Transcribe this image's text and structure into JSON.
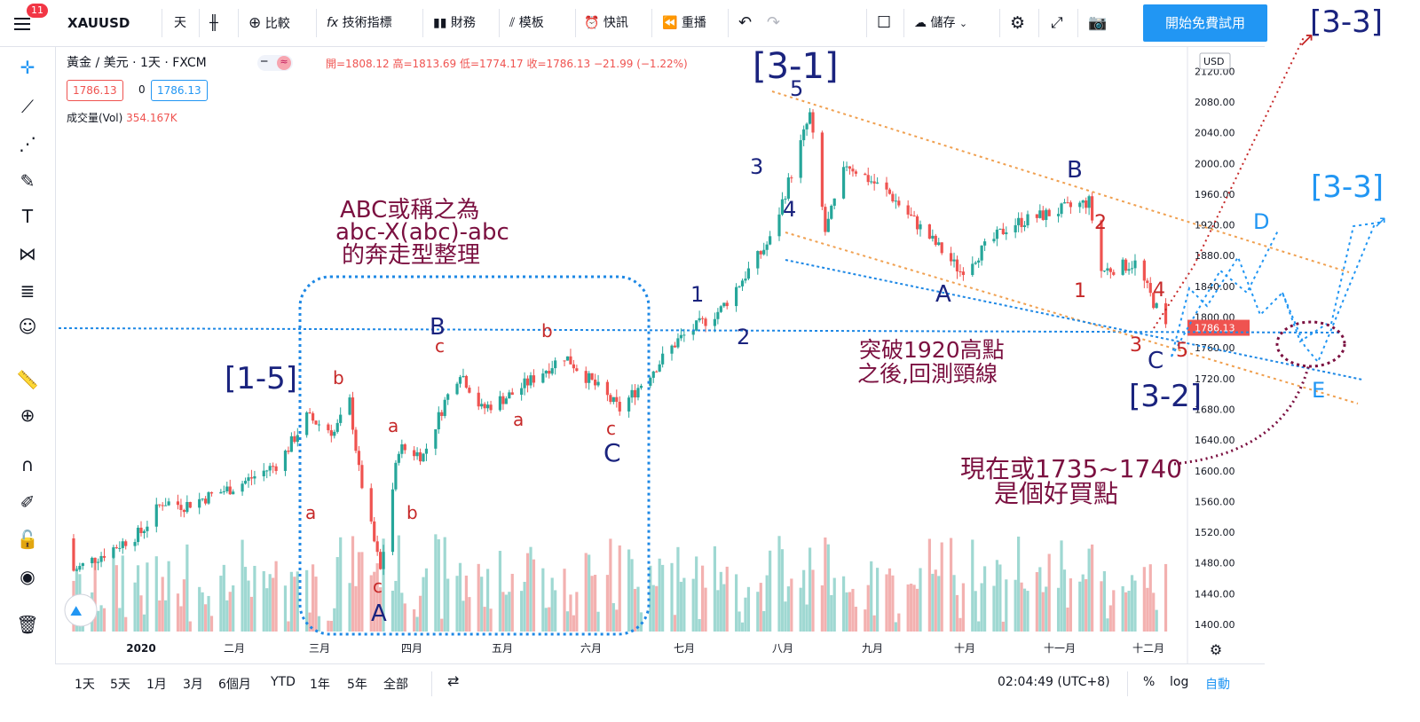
{
  "toolbar": {
    "notif_count": "11",
    "symbol": "XAUUSD",
    "interval": "天",
    "compare": "比較",
    "indicators": "技術指標",
    "financials": "財務",
    "templates": "模板",
    "alerts": "快訊",
    "replay": "重播",
    "save": "儲存",
    "cta": "開始免費試用"
  },
  "legend": {
    "title": "黃金 / 美元 · 1天 · FXCM",
    "ohlc": "開=1808.12 高=1813.69 低=1774.17 收=1786.13 −21.99 (−1.22%)",
    "bid": "1786.13",
    "spread": "0",
    "ask": "1786.13",
    "vol_label": "成交量(Vol)",
    "vol_value": "354.167K"
  },
  "bottom": {
    "ranges": [
      "1天",
      "5天",
      "1月",
      "3月",
      "6個月",
      "YTD",
      "1年",
      "5年",
      "全部"
    ],
    "time": "02:04:49 (UTC+8)",
    "pct": "%",
    "log": "log",
    "auto": "自動"
  },
  "chart_data": {
    "type": "candlestick",
    "symbol": "XAUUSD",
    "currency": "USD",
    "last_price": "1786.13",
    "y_ticks": [
      "2120.00",
      "2080.00",
      "2040.00",
      "2000.00",
      "1960.00",
      "1920.00",
      "1880.00",
      "1840.00",
      "1800.00",
      "1760.00",
      "1720.00",
      "1680.00",
      "1640.00",
      "1600.00",
      "1560.00",
      "1520.00",
      "1480.00",
      "1440.00",
      "1400.00"
    ],
    "x_ticks": [
      "2020",
      "二月",
      "三月",
      "四月",
      "五月",
      "六月",
      "七月",
      "八月",
      "九月",
      "十月",
      "十一月",
      "十二月"
    ],
    "ylim": [
      1380,
      2140
    ],
    "price_path": [
      {
        "d": "2020-01-01",
        "c": 1520
      },
      {
        "d": "2020-01-08",
        "c": 1560
      },
      {
        "d": "2020-01-15",
        "c": 1555
      },
      {
        "d": "2020-02-01",
        "c": 1580
      },
      {
        "d": "2020-02-15",
        "c": 1610
      },
      {
        "d": "2020-02-24",
        "c": 1670
      },
      {
        "d": "2020-03-04",
        "c": 1650
      },
      {
        "d": "2020-03-09",
        "c": 1690
      },
      {
        "d": "2020-03-12",
        "c": 1600
      },
      {
        "d": "2020-03-19",
        "c": 1470
      },
      {
        "d": "2020-03-25",
        "c": 1630
      },
      {
        "d": "2020-04-02",
        "c": 1620
      },
      {
        "d": "2020-04-09",
        "c": 1690
      },
      {
        "d": "2020-04-14",
        "c": 1730
      },
      {
        "d": "2020-04-21",
        "c": 1680
      },
      {
        "d": "2020-05-01",
        "c": 1700
      },
      {
        "d": "2020-05-18",
        "c": 1750
      },
      {
        "d": "2020-06-05",
        "c": 1680
      },
      {
        "d": "2020-06-24",
        "c": 1770
      },
      {
        "d": "2020-07-08",
        "c": 1810
      },
      {
        "d": "2020-07-24",
        "c": 1900
      },
      {
        "d": "2020-08-06",
        "c": 2063
      },
      {
        "d": "2020-08-11",
        "c": 1911
      },
      {
        "d": "2020-08-18",
        "c": 2000
      },
      {
        "d": "2020-09-01",
        "c": 1960
      },
      {
        "d": "2020-09-24",
        "c": 1860
      },
      {
        "d": "2020-10-10",
        "c": 1920
      },
      {
        "d": "2020-11-05",
        "c": 1950
      },
      {
        "d": "2020-11-09",
        "c": 1860
      },
      {
        "d": "2020-11-20",
        "c": 1870
      },
      {
        "d": "2020-11-30",
        "c": 1786
      }
    ],
    "annotations": {
      "wave_3_1": "[3-1]",
      "wave_1_5": "[1-5]",
      "wave_3_2": "[3-2]",
      "wave_3_3_top": "[3-3]",
      "wave_3_3_right": "[3-3]",
      "abc_note_1": "ABC或稱之為",
      "abc_note_2": "abc-X(abc)-abc",
      "abc_note_3": "的奔走型整理",
      "break_note_1": "突破1920高點",
      "break_note_2": "之後,回測頸線",
      "buy_note_1": "現在或1735~1740",
      "buy_note_2": "是個好買點",
      "wave_labels": {
        "A1": "A",
        "c1": "c",
        "a1": "a",
        "b1": "b",
        "a2": "a",
        "b2": "b",
        "B1": "B",
        "c2": "c",
        "a3": "a",
        "b3": "b",
        "c3": "c",
        "C1": "C",
        "n1": "1",
        "n2": "2",
        "n3": "3",
        "n4": "4",
        "n5": "5",
        "A2": "A",
        "B2": "B",
        "r1": "1",
        "r2": "2",
        "r3": "3",
        "r4": "4",
        "r5": "5",
        "C2": "C",
        "D": "D",
        "E": "E"
      }
    }
  }
}
